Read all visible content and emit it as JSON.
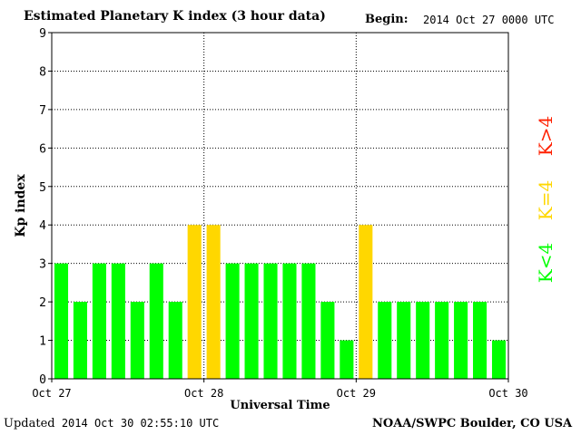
{
  "header": {
    "title": "Estimated Planetary K index (3 hour data)",
    "begin_label": "Begin:",
    "begin_value": "2014 Oct 27 0000 UTC"
  },
  "footer": {
    "updated_label": "Updated",
    "updated_value": "2014 Oct 30 02:55:10 UTC",
    "source": "NOAA/SWPC Boulder, CO USA"
  },
  "colors": {
    "below4": "#00ff00",
    "equal4": "#ffd700",
    "above4": "#ff2000",
    "grid": "#000000"
  },
  "chart_data": {
    "type": "bar",
    "title": "Estimated Planetary K index (3 hour data)",
    "xlabel": "Universal Time",
    "ylabel": "Kp index",
    "ylim": [
      0,
      9
    ],
    "yticks": [
      "0",
      "1",
      "2",
      "3",
      "4",
      "5",
      "6",
      "7",
      "8",
      "9"
    ],
    "xticks": [
      "Oct 27",
      "Oct 28",
      "Oct 29",
      "Oct 30"
    ],
    "grid": true,
    "values": [
      3,
      2,
      3,
      3,
      2,
      3,
      2,
      4,
      4,
      3,
      3,
      3,
      3,
      3,
      2,
      1,
      4,
      2,
      2,
      2,
      2,
      2,
      2,
      1
    ],
    "legend": [
      {
        "label": "K<4",
        "color": "#00ff00"
      },
      {
        "label": "K=4",
        "color": "#ffd700"
      },
      {
        "label": "K>4",
        "color": "#ff2000"
      }
    ],
    "legend_placement": "right"
  }
}
